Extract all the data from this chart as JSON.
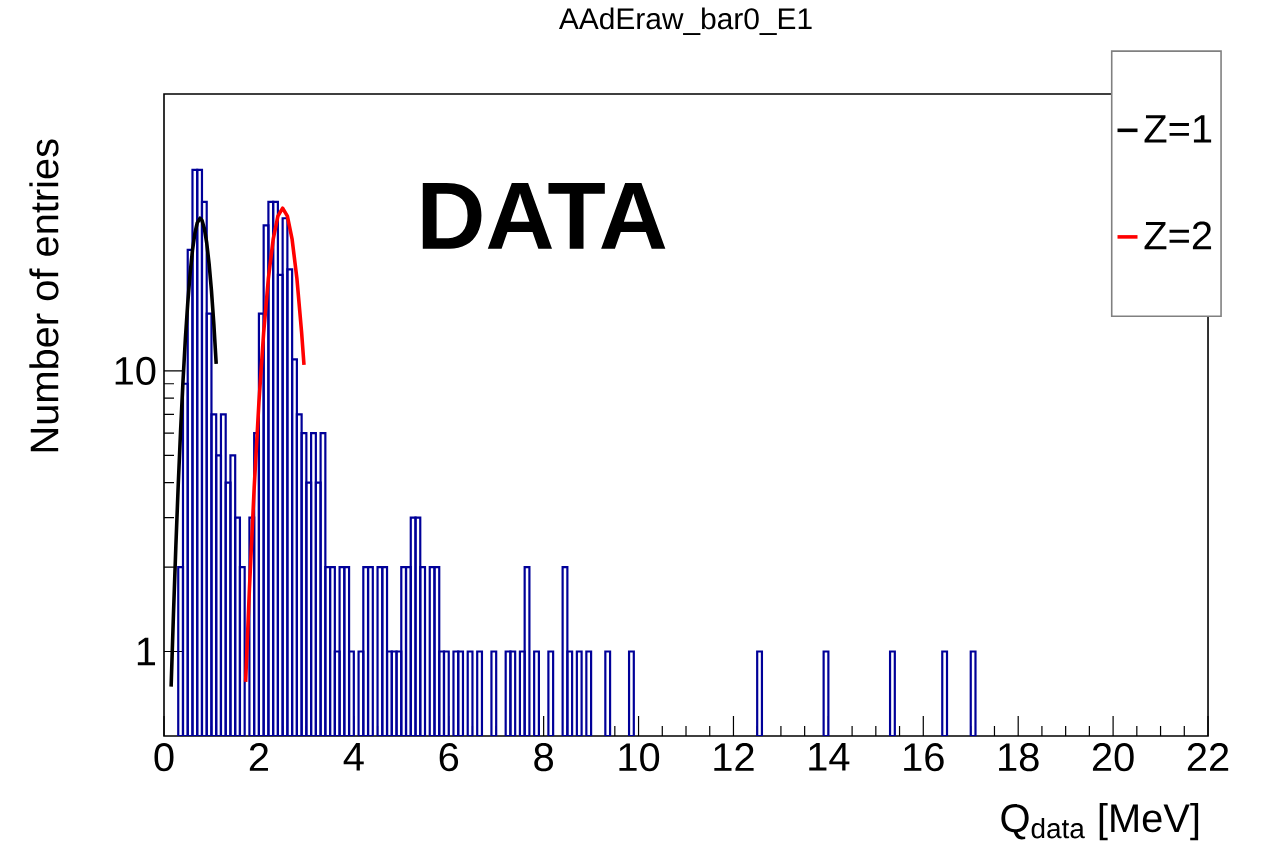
{
  "chart_data": {
    "type": "histogram",
    "title": "AAdEraw_bar0_E1",
    "xlabel": "Q$_{data}$ [MeV]",
    "ylabel": "Number of entries",
    "color": "#000099",
    "log": "y",
    "legend": "top right",
    "annotations": [
      "DATA"
    ],
    "xlim": [
      0,
      22
    ],
    "ylim": [
      0.5,
      97
    ],
    "xticks": [
      0,
      2,
      4,
      6,
      8,
      10,
      12,
      14,
      16,
      18,
      20,
      22
    ],
    "yticks": [
      1,
      10
    ],
    "bins": [
      0,
      0.1,
      0.2,
      0.3,
      0.4,
      0.5,
      0.6,
      0.7,
      0.8,
      0.9,
      1,
      1.1,
      1.2,
      1.3,
      1.4,
      1.5,
      1.6,
      1.7,
      1.8,
      1.9,
      2,
      2.1,
      2.2,
      2.3,
      2.4,
      2.5,
      2.6,
      2.7,
      2.8,
      2.9,
      3,
      3.1,
      3.2,
      3.3,
      3.4,
      3.5,
      3.6,
      3.7,
      3.8,
      3.9,
      4,
      4.1,
      4.2,
      4.3,
      4.4,
      4.5,
      4.6,
      4.7,
      4.8,
      4.9,
      5,
      5.1,
      5.2,
      5.3,
      5.4,
      5.5,
      5.6,
      5.7,
      5.8,
      5.9,
      6,
      6.1,
      6.2,
      6.3,
      6.4,
      6.5,
      6.6,
      6.7,
      6.8,
      6.9,
      7,
      7.1,
      7.2,
      7.3,
      7.4,
      7.5,
      7.6,
      7.7,
      7.8,
      7.9,
      8,
      8.1,
      8.2,
      8.3,
      8.4,
      8.5,
      8.6,
      8.7,
      8.8,
      8.9,
      9,
      9.1,
      9.2,
      9.3,
      9.4,
      9.5,
      9.6,
      9.7,
      9.8,
      9.9,
      10,
      10.1,
      10.2,
      10.3,
      10.4,
      10.5,
      10.6,
      10.7,
      10.8,
      10.9,
      11,
      11.1,
      11.2,
      11.3,
      11.4,
      11.5,
      11.6,
      11.7,
      11.8,
      11.9,
      12,
      12.1,
      12.2,
      12.3,
      12.4,
      12.5,
      12.6,
      12.7,
      12.8,
      12.9,
      13,
      13.1,
      13.2,
      13.3,
      13.4,
      13.5,
      13.6,
      13.7,
      13.8,
      13.9,
      14,
      14.1,
      14.2,
      14.3,
      14.4,
      14.5,
      14.6,
      14.7,
      14.8,
      14.9,
      15,
      15.1,
      15.2,
      15.3,
      15.4,
      15.5,
      15.6,
      15.7,
      15.8,
      15.9,
      16,
      16.1,
      16.2,
      16.3,
      16.4,
      16.5,
      16.6,
      16.7,
      16.8,
      16.9,
      17,
      17.1,
      17.2,
      17.3,
      17.4,
      17.5,
      17.6,
      17.7,
      17.8,
      17.9,
      18,
      18.1,
      18.2,
      18.3,
      18.4,
      18.5,
      18.6,
      18.7,
      18.8,
      18.9,
      19,
      19.1,
      19.2,
      19.3,
      19.4,
      19.5,
      19.6,
      19.7,
      19.8,
      19.9,
      20,
      20.1,
      20.2,
      20.3,
      20.4,
      20.5,
      20.6,
      20.7,
      20.8,
      20.9,
      21,
      21.1,
      21.2,
      21.3,
      21.4,
      21.5,
      21.6,
      21.7,
      21.8,
      21.9,
      22
    ],
    "values": [
      null,
      null,
      null,
      2,
      9,
      27,
      52,
      52,
      40,
      16,
      7,
      5,
      7,
      4,
      5,
      3,
      2,
      null,
      3,
      6,
      16,
      33,
      40,
      40,
      22,
      35,
      23,
      11,
      7,
      6,
      4,
      6,
      4,
      6,
      2,
      2,
      1,
      2,
      2,
      1,
      null,
      1,
      2,
      2,
      null,
      2,
      2,
      1,
      1,
      1,
      2,
      2,
      3,
      3,
      2,
      null,
      2,
      2,
      1,
      1,
      null,
      1,
      1,
      null,
      1,
      null,
      1,
      null,
      null,
      1,
      null,
      null,
      1,
      1,
      null,
      1,
      2,
      null,
      1,
      null,
      null,
      1,
      null,
      null,
      2,
      1,
      null,
      1,
      null,
      1,
      null,
      null,
      null,
      1,
      null,
      null,
      null,
      null,
      1,
      null,
      null,
      null,
      null,
      null,
      null,
      null,
      null,
      null,
      null,
      null,
      null,
      null,
      null,
      null,
      null,
      null,
      null,
      null,
      null,
      null,
      null,
      null,
      null,
      null,
      null,
      1,
      null,
      null,
      null,
      null,
      null,
      null,
      null,
      null,
      null,
      null,
      null,
      null,
      null,
      1,
      null,
      null,
      null,
      null,
      null,
      null,
      null,
      null,
      null,
      null,
      null,
      null,
      null,
      1,
      null,
      null,
      null,
      null,
      null,
      null,
      null,
      null,
      null,
      null,
      1,
      null,
      null,
      null,
      null,
      null,
      1,
      null,
      null,
      null,
      null,
      null,
      null,
      null,
      null,
      null,
      null,
      null,
      null,
      null,
      null,
      null,
      null,
      null,
      null,
      null,
      null,
      null,
      null,
      null,
      null,
      null,
      null,
      null,
      null,
      null,
      null,
      null,
      null,
      null,
      null,
      null,
      null,
      null,
      null,
      null,
      null,
      null,
      null,
      null,
      null,
      null,
      null,
      null,
      null,
      null
    ],
    "series": [
      {
        "name": "Z=1",
        "type": "line",
        "color": "#000000",
        "x": [
          0.15,
          0.2,
          0.25,
          0.3,
          0.35,
          0.4,
          0.45,
          0.5,
          0.55,
          0.6,
          0.65,
          0.7,
          0.76,
          0.8,
          0.85,
          0.9,
          0.95,
          1.0,
          1.05,
          1.1
        ],
        "values": [
          0.75,
          1.37,
          2.38,
          3.93,
          6.16,
          9.17,
          13,
          17.4,
          22.2,
          26.9,
          30.9,
          33.7,
          35,
          34.4,
          32.2,
          28.6,
          24.1,
          19.3,
          14.7,
          10.6
        ]
      },
      {
        "name": "Z=2",
        "type": "line",
        "color": "#ff0000",
        "x": [
          1.72,
          1.8,
          1.9,
          2.0,
          2.1,
          2.2,
          2.3,
          2.4,
          2.5,
          2.6,
          2.7,
          2.8,
          2.9,
          2.95
        ],
        "values": [
          0.78,
          1.67,
          3.83,
          7.72,
          13.7,
          21.4,
          29.4,
          35.6,
          38,
          35.6,
          29.4,
          21.4,
          13.7,
          10.5
        ]
      }
    ]
  }
}
